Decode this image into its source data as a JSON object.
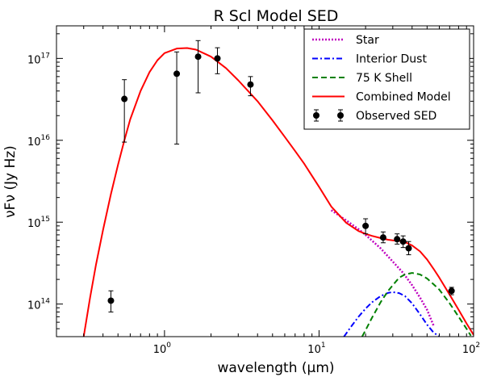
{
  "chart_data": {
    "type": "line",
    "title": "R Scl Model SED",
    "xlabel": "wavelength (μm)",
    "ylabel": "νFν (Jy Hz)",
    "xscale": "log",
    "yscale": "log",
    "xlim": [
      0.2,
      100
    ],
    "ylim": [
      40000000000000,
      250000000000000000
    ],
    "x_ticks": [
      {
        "value": 1,
        "label": "10",
        "exp": "0"
      },
      {
        "value": 10,
        "label": "10",
        "exp": "1"
      },
      {
        "value": 100,
        "label": "10",
        "exp": "2"
      }
    ],
    "y_ticks": [
      {
        "value": 100000000000000,
        "label": "10",
        "exp": "14"
      },
      {
        "value": 1000000000000000,
        "label": "10",
        "exp": "15"
      },
      {
        "value": 10000000000000000,
        "label": "10",
        "exp": "16"
      },
      {
        "value": 100000000000000000,
        "label": "10",
        "exp": "17"
      }
    ],
    "grid": false,
    "legend_position": "top-right",
    "series": [
      {
        "name": "Star",
        "style": "dotted",
        "color": "#bf00bf",
        "x": [
          12,
          15,
          18,
          20,
          25,
          30,
          35,
          40,
          45,
          50,
          55
        ],
        "y": [
          1400000000000000,
          1050000000000000,
          820000000000000,
          700000000000000,
          480000000000000,
          330000000000000,
          240000000000000,
          170000000000000,
          120000000000000,
          85000000000000,
          55000000000000
        ]
      },
      {
        "name": "Interior Dust",
        "style": "dashdot",
        "color": "#0000ff",
        "x": [
          14.5,
          16,
          18,
          20,
          22,
          25,
          28,
          30,
          33,
          36,
          40,
          45,
          50,
          55,
          60
        ],
        "y": [
          40000000000000,
          52000000000000,
          70000000000000,
          88000000000000,
          105000000000000,
          125000000000000,
          137000000000000,
          140000000000000,
          136000000000000,
          125000000000000,
          102000000000000,
          75000000000000,
          56000000000000,
          45000000000000,
          40000000000000
        ]
      },
      {
        "name": "75 K Shell",
        "style": "dashed",
        "color": "#008000",
        "x": [
          19,
          20,
          22,
          25,
          28,
          30,
          33,
          36,
          40,
          45,
          50,
          55,
          60,
          70,
          80,
          90,
          96
        ],
        "y": [
          40000000000000,
          48000000000000,
          68000000000000,
          105000000000000,
          145000000000000,
          170000000000000,
          210000000000000,
          230000000000000,
          240000000000000,
          230000000000000,
          205000000000000,
          175000000000000,
          150000000000000,
          102000000000000,
          70000000000000,
          50000000000000,
          41000000000000
        ]
      },
      {
        "name": "Combined Model",
        "style": "solid",
        "color": "#ff0000",
        "x": [
          0.3,
          0.33,
          0.36,
          0.4,
          0.45,
          0.5,
          0.55,
          0.6,
          0.7,
          0.8,
          0.9,
          1.0,
          1.2,
          1.4,
          1.6,
          2.0,
          2.5,
          3.0,
          4.0,
          5.0,
          6.0,
          7.0,
          8.0,
          10,
          12,
          15,
          18,
          20,
          22,
          25,
          28,
          30,
          33,
          36,
          40,
          45,
          50,
          55,
          60,
          70,
          80,
          90,
          100
        ],
        "y": [
          40000000000000,
          120000000000000,
          300000000000000,
          800000000000000,
          2200000000000000,
          5000000000000000,
          10000000000000000,
          18000000000000000,
          40000000000000000,
          68000000000000000,
          95000000000000000,
          116000000000000000,
          132000000000000000,
          134000000000000000,
          128000000000000000,
          105000000000000000,
          76000000000000000,
          54000000000000000,
          30000000000000000,
          17500000000000000,
          11000000000000000,
          7400000000000000,
          5200000000000000,
          2700000000000000,
          1550000000000000,
          980000000000000,
          780000000000000,
          720000000000000,
          680000000000000,
          640000000000000,
          610000000000000,
          600000000000000,
          590000000000000,
          570000000000000,
          520000000000000,
          440000000000000,
          350000000000000,
          270000000000000,
          210000000000000,
          130000000000000,
          85000000000000,
          58000000000000,
          42000000000000
        ]
      }
    ],
    "observed": {
      "name": "Observed SED",
      "color": "#000000",
      "points": [
        {
          "x": 0.45,
          "y": 110000000000000,
          "lo": 80000000000000,
          "hi": 145000000000000
        },
        {
          "x": 0.55,
          "y": 32000000000000000,
          "lo": 9500000000000000,
          "hi": 55000000000000000
        },
        {
          "x": 1.2,
          "y": 65000000000000000,
          "lo": 9000000000000000,
          "hi": 120000000000000000
        },
        {
          "x": 1.65,
          "y": 105000000000000000,
          "lo": 38000000000000000,
          "hi": 165000000000000000
        },
        {
          "x": 2.2,
          "y": 100000000000000000,
          "lo": 65000000000000000,
          "hi": 135000000000000000
        },
        {
          "x": 3.6,
          "y": 48000000000000000,
          "lo": 35000000000000000,
          "hi": 60000000000000000
        },
        {
          "x": 20,
          "y": 900000000000000,
          "lo": 720000000000000,
          "hi": 1100000000000000
        },
        {
          "x": 26,
          "y": 650000000000000,
          "lo": 560000000000000,
          "hi": 760000000000000
        },
        {
          "x": 32,
          "y": 620000000000000,
          "lo": 540000000000000,
          "hi": 720000000000000
        },
        {
          "x": 35,
          "y": 580000000000000,
          "lo": 490000000000000,
          "hi": 680000000000000
        },
        {
          "x": 38,
          "y": 480000000000000,
          "lo": 400000000000000,
          "hi": 580000000000000
        },
        {
          "x": 72,
          "y": 145000000000000,
          "lo": 130000000000000,
          "hi": 160000000000000
        }
      ]
    }
  }
}
